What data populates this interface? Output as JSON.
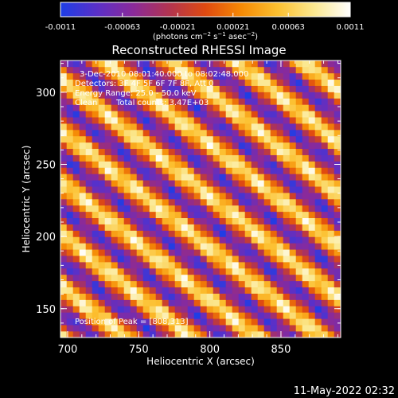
{
  "colorbar": {
    "min": -0.0011,
    "max": 0.0011,
    "tick_labels": [
      "-0.0011",
      "-0.00063",
      "-0.00021",
      "0.00021",
      "0.00063",
      "0.0011"
    ],
    "tick_values": [
      -0.0011,
      -0.00063,
      -0.00021,
      0.00021,
      0.00063,
      0.0011
    ],
    "colormap": [
      "#1d3ee6",
      "#5a30c8",
      "#8a2a9a",
      "#b23450",
      "#e04a10",
      "#f58a05",
      "#fcc030",
      "#fbe890",
      "#ffffff"
    ],
    "unit_label": "(photons cm-2 s-1 asec-2)"
  },
  "chart_data": {
    "type": "heatmap",
    "title": "Reconstructed RHESSI Image",
    "xlabel": "Heliocentric X (arcsec)",
    "ylabel": "Heliocentric Y (arcsec)",
    "xlim": [
      695,
      892
    ],
    "ylim": [
      130,
      322
    ],
    "xticks": [
      700,
      750,
      800,
      850
    ],
    "yticks": [
      150,
      200,
      250,
      300
    ],
    "xtick_labels": [
      "700",
      "750",
      "800",
      "850"
    ],
    "ytick_labels": [
      "150",
      "200",
      "250",
      "300"
    ],
    "pattern": {
      "description_free": true,
      "stripe_slope_dy_dx": -0.78,
      "stripe_period_arcsec": 36,
      "peak": [
        808,
        313
      ]
    },
    "annotations": {
      "time_range": "3-Dec-2010 08:01:40.000 to 08:02:48.000",
      "detectors": "Detectors: 3F 4F 5F 6F 7F 8F, Att 0",
      "energy_range": "Energy Range: 25.0 - 50.0 keV",
      "method": "Clean",
      "total_counts": "Total counts: 3.47E+03",
      "peak_position": "Position of Peak = [808,313]"
    }
  },
  "footer": {
    "date": "11-May-2022 02:32"
  }
}
